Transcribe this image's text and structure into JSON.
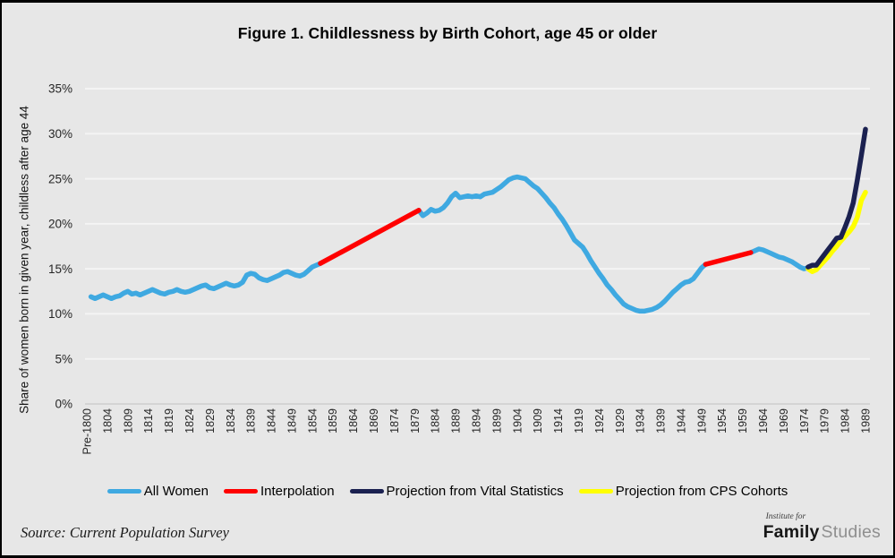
{
  "source_note": "Source: Current Population Survey",
  "logo": {
    "top": "Institute for",
    "family": "Family",
    "studies": "Studies"
  },
  "colors": {
    "background": "#e7e7e7",
    "gridline": "#f4f4f4",
    "axis_line": "#d4d4d4",
    "tick_text": "#262626"
  },
  "chart_data": {
    "type": "line",
    "title": "Figure 1. Childlessness by Birth Cohort, age 45 or older",
    "xlabel": "",
    "ylabel": "Share of women born in given year, childless after age 44",
    "y_tick_values": [
      0,
      5,
      10,
      15,
      20,
      25,
      30,
      35
    ],
    "y_tick_labels": [
      "0%",
      "5%",
      "10%",
      "15%",
      "20%",
      "25%",
      "30%",
      "35%"
    ],
    "x_tick_labels": [
      "Pre-1800",
      "1804",
      "1809",
      "1814",
      "1819",
      "1824",
      "1829",
      "1834",
      "1839",
      "1844",
      "1849",
      "1854",
      "1859",
      "1864",
      "1869",
      "1874",
      "1879",
      "1884",
      "1889",
      "1894",
      "1899",
      "1904",
      "1909",
      "1914",
      "1919",
      "1924",
      "1929",
      "1934",
      "1939",
      "1944",
      "1949",
      "1954",
      "1959",
      "1964",
      "1969",
      "1974",
      "1979",
      "1984",
      "1989"
    ],
    "x_range_years": [
      1799,
      1989
    ],
    "ylim": [
      0,
      35
    ],
    "grid": "horizontal",
    "legend_position": "bottom",
    "series": [
      {
        "name": "All Women",
        "color": "#3FA9E1",
        "segments": [
          [
            [
              1800,
              11.9
            ],
            [
              1801,
              11.7
            ],
            [
              1802,
              11.9
            ],
            [
              1803,
              12.1
            ],
            [
              1804,
              11.9
            ],
            [
              1805,
              11.7
            ],
            [
              1806,
              11.9
            ],
            [
              1807,
              12.0
            ],
            [
              1808,
              12.3
            ],
            [
              1809,
              12.5
            ],
            [
              1810,
              12.2
            ],
            [
              1811,
              12.3
            ],
            [
              1812,
              12.1
            ],
            [
              1813,
              12.3
            ],
            [
              1814,
              12.5
            ],
            [
              1815,
              12.7
            ],
            [
              1816,
              12.5
            ],
            [
              1817,
              12.3
            ],
            [
              1818,
              12.2
            ],
            [
              1819,
              12.4
            ],
            [
              1820,
              12.5
            ],
            [
              1821,
              12.7
            ],
            [
              1822,
              12.5
            ],
            [
              1823,
              12.4
            ],
            [
              1824,
              12.5
            ],
            [
              1825,
              12.7
            ],
            [
              1826,
              12.9
            ],
            [
              1827,
              13.1
            ],
            [
              1828,
              13.2
            ],
            [
              1829,
              12.9
            ],
            [
              1830,
              12.8
            ],
            [
              1831,
              13.0
            ],
            [
              1832,
              13.2
            ],
            [
              1833,
              13.4
            ],
            [
              1834,
              13.2
            ],
            [
              1835,
              13.1
            ],
            [
              1836,
              13.2
            ],
            [
              1837,
              13.5
            ],
            [
              1838,
              14.3
            ],
            [
              1839,
              14.5
            ],
            [
              1840,
              14.4
            ],
            [
              1841,
              14.0
            ],
            [
              1842,
              13.8
            ],
            [
              1843,
              13.7
            ],
            [
              1844,
              13.9
            ],
            [
              1845,
              14.1
            ],
            [
              1846,
              14.3
            ],
            [
              1847,
              14.6
            ],
            [
              1848,
              14.7
            ],
            [
              1849,
              14.5
            ],
            [
              1850,
              14.3
            ],
            [
              1851,
              14.2
            ],
            [
              1852,
              14.4
            ],
            [
              1853,
              14.8
            ],
            [
              1854,
              15.2
            ],
            [
              1855,
              15.4
            ],
            [
              1856,
              15.6
            ]
          ],
          [
            [
              1880,
              21.5
            ],
            [
              1881,
              20.9
            ],
            [
              1882,
              21.2
            ],
            [
              1883,
              21.6
            ],
            [
              1884,
              21.4
            ],
            [
              1885,
              21.5
            ],
            [
              1886,
              21.8
            ],
            [
              1887,
              22.3
            ],
            [
              1888,
              23.0
            ],
            [
              1889,
              23.4
            ],
            [
              1890,
              22.9
            ],
            [
              1891,
              23.0
            ],
            [
              1892,
              23.1
            ],
            [
              1893,
              23.0
            ],
            [
              1894,
              23.1
            ],
            [
              1895,
              23.0
            ],
            [
              1896,
              23.3
            ],
            [
              1897,
              23.4
            ],
            [
              1898,
              23.5
            ],
            [
              1899,
              23.8
            ],
            [
              1900,
              24.1
            ],
            [
              1901,
              24.5
            ],
            [
              1902,
              24.9
            ],
            [
              1903,
              25.1
            ],
            [
              1904,
              25.2
            ],
            [
              1905,
              25.1
            ],
            [
              1906,
              25.0
            ],
            [
              1907,
              24.6
            ],
            [
              1908,
              24.2
            ],
            [
              1909,
              23.9
            ],
            [
              1910,
              23.4
            ],
            [
              1911,
              22.9
            ],
            [
              1912,
              22.3
            ],
            [
              1913,
              21.8
            ],
            [
              1914,
              21.1
            ],
            [
              1915,
              20.5
            ],
            [
              1916,
              19.8
            ],
            [
              1917,
              19.0
            ],
            [
              1918,
              18.2
            ],
            [
              1919,
              17.8
            ],
            [
              1920,
              17.4
            ],
            [
              1921,
              16.7
            ],
            [
              1922,
              15.9
            ],
            [
              1923,
              15.2
            ],
            [
              1924,
              14.5
            ],
            [
              1925,
              13.9
            ],
            [
              1926,
              13.2
            ],
            [
              1927,
              12.7
            ],
            [
              1928,
              12.1
            ],
            [
              1929,
              11.6
            ],
            [
              1930,
              11.1
            ],
            [
              1931,
              10.8
            ],
            [
              1932,
              10.6
            ],
            [
              1933,
              10.4
            ],
            [
              1934,
              10.3
            ],
            [
              1935,
              10.3
            ],
            [
              1936,
              10.4
            ],
            [
              1937,
              10.5
            ],
            [
              1938,
              10.7
            ],
            [
              1939,
              11.0
            ],
            [
              1940,
              11.4
            ],
            [
              1941,
              11.9
            ],
            [
              1942,
              12.4
            ],
            [
              1943,
              12.8
            ],
            [
              1944,
              13.2
            ],
            [
              1945,
              13.5
            ],
            [
              1946,
              13.6
            ],
            [
              1947,
              13.9
            ],
            [
              1948,
              14.5
            ],
            [
              1949,
              15.1
            ],
            [
              1950,
              15.5
            ]
          ],
          [
            [
              1961,
              16.8
            ],
            [
              1962,
              17.0
            ],
            [
              1963,
              17.2
            ],
            [
              1964,
              17.1
            ],
            [
              1965,
              16.9
            ],
            [
              1966,
              16.7
            ],
            [
              1967,
              16.5
            ],
            [
              1968,
              16.3
            ],
            [
              1969,
              16.2
            ],
            [
              1970,
              16.0
            ],
            [
              1971,
              15.8
            ],
            [
              1972,
              15.5
            ],
            [
              1973,
              15.2
            ],
            [
              1974,
              15.0
            ],
            [
              1975,
              15.1
            ]
          ]
        ]
      },
      {
        "name": "Interpolation",
        "color": "#FF0000",
        "segments": [
          [
            [
              1856,
              15.6
            ],
            [
              1880,
              21.5
            ]
          ],
          [
            [
              1950,
              15.5
            ],
            [
              1961,
              16.8
            ]
          ]
        ]
      },
      {
        "name": "Projection from Vital Statistics",
        "color": "#1B2150",
        "segments": [
          [
            [
              1975,
              15.2
            ],
            [
              1976,
              15.4
            ],
            [
              1977,
              15.4
            ],
            [
              1978,
              16.0
            ],
            [
              1979,
              16.6
            ],
            [
              1980,
              17.2
            ],
            [
              1981,
              17.8
            ],
            [
              1982,
              18.4
            ],
            [
              1983,
              18.5
            ],
            [
              1984,
              19.6
            ],
            [
              1985,
              20.8
            ],
            [
              1986,
              22.3
            ],
            [
              1987,
              24.8
            ],
            [
              1988,
              27.6
            ],
            [
              1989,
              30.5
            ]
          ]
        ]
      },
      {
        "name": "Projection from CPS Cohorts",
        "color": "#FFFF00",
        "segments": [
          [
            [
              1975,
              15.0
            ],
            [
              1976,
              14.7
            ],
            [
              1977,
              14.9
            ],
            [
              1978,
              15.4
            ],
            [
              1979,
              15.9
            ],
            [
              1980,
              16.4
            ],
            [
              1981,
              17.0
            ],
            [
              1982,
              17.5
            ],
            [
              1983,
              18.1
            ],
            [
              1984,
              18.6
            ],
            [
              1985,
              19.1
            ],
            [
              1986,
              19.7
            ],
            [
              1987,
              20.7
            ],
            [
              1988,
              22.6
            ],
            [
              1989,
              23.5
            ]
          ]
        ]
      }
    ]
  }
}
